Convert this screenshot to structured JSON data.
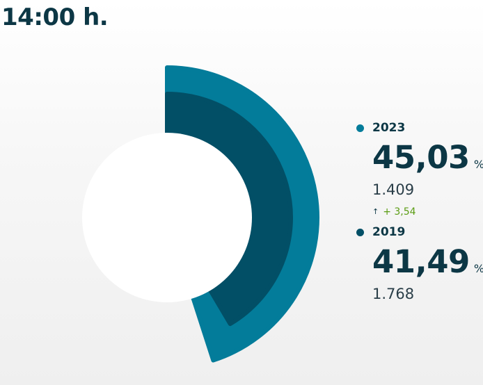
{
  "header": {
    "time": "14:00 h."
  },
  "colors": {
    "outer_ring": "#037c9a",
    "inner_ring": "#024f66",
    "text_dark": "#0c3745",
    "delta_green": "#5a9c12"
  },
  "chart_data": {
    "type": "radial-bar",
    "unit": "%",
    "max": 100,
    "series": [
      {
        "name": "2023",
        "value": 45.03,
        "label": "45,03",
        "count": "1.409",
        "color": "#037c9a"
      },
      {
        "name": "2019",
        "value": 41.49,
        "label": "41,49",
        "count": "1.768",
        "color": "#024f66"
      }
    ],
    "delta": {
      "arrow": "↑",
      "text": "+ 3,54"
    }
  },
  "legend": {
    "items": [
      {
        "year": "2023",
        "pct": "45,03",
        "unit": "%",
        "count": "1.409"
      },
      {
        "year": "2019",
        "pct": "41,49",
        "unit": "%",
        "count": "1.768"
      }
    ],
    "delta_arrow": "↑",
    "delta_text": "+ 3,54"
  }
}
